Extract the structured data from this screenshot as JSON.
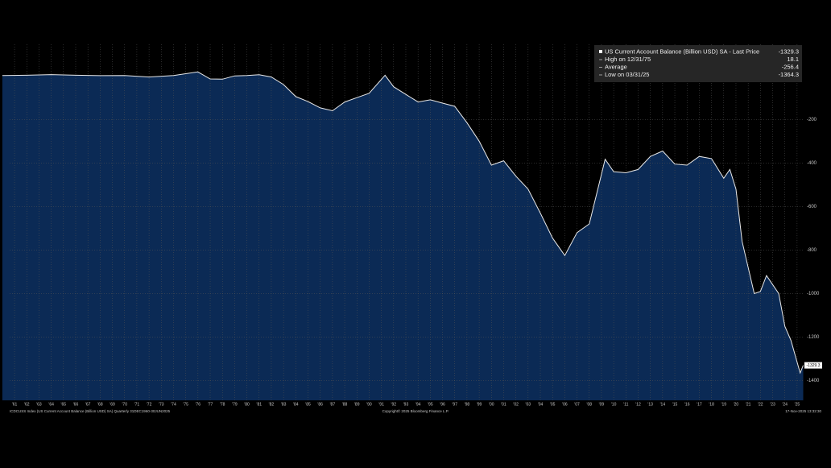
{
  "chart_data": {
    "type": "area",
    "series": [
      {
        "name": "US Current Account Balance (Billion USD) SA - Last Price",
        "color": "#0b2a55",
        "line_color": "#e8e8e8",
        "x": [
          1960,
          1962,
          1964,
          1966,
          1968,
          1970,
          1972,
          1974,
          1975.99,
          1977,
          1978,
          1979,
          1980,
          1981,
          1982,
          1983,
          1984,
          1985,
          1986,
          1987,
          1988,
          1989,
          1990,
          1991.3,
          1992,
          1993,
          1994,
          1995,
          1996,
          1997,
          1998,
          1999,
          2000,
          2001,
          2002,
          2003,
          2004,
          2005,
          2006,
          2007,
          2008,
          2009.3,
          2010,
          2011,
          2012,
          2013,
          2014,
          2015,
          2016,
          2017,
          2018,
          2019,
          2019.5,
          2020,
          2020.5,
          2021.5,
          2022,
          2022.5,
          2023.5,
          2024,
          2024.5,
          2025.25,
          2025.5
        ],
        "values": [
          2,
          3,
          6,
          3,
          1,
          2,
          -5,
          2,
          18.1,
          -14,
          -15,
          0,
          2,
          5,
          -5,
          -40,
          -95,
          -118,
          -147,
          -160,
          -120,
          -100,
          -80,
          3,
          -50,
          -85,
          -120,
          -110,
          -125,
          -140,
          -215,
          -300,
          -410,
          -390,
          -460,
          -520,
          -630,
          -745,
          -825,
          -720,
          -680,
          -383,
          -440,
          -445,
          -430,
          -370,
          -345,
          -405,
          -410,
          -370,
          -380,
          -470,
          -430,
          -520,
          -760,
          -1000,
          -990,
          -917,
          -1000,
          -1150,
          -1215,
          -1364.3,
          -1329.3
        ]
      }
    ],
    "stats": [
      {
        "label": "High on 12/31/75",
        "value": 18.1
      },
      {
        "label": "Average",
        "value": -256.4
      },
      {
        "label": "Low on 03/31/25",
        "value": -1364.3
      }
    ],
    "xlim": [
      1960.6,
      2025.6
    ],
    "ylim": [
      -1490,
      145
    ],
    "yticks": [
      -1400,
      -1200,
      -1000,
      -800,
      -600,
      -400,
      -200
    ],
    "xticks": [
      {
        "value": 1961,
        "label": "'61"
      },
      {
        "value": 1962,
        "label": "'62"
      },
      {
        "value": 1963,
        "label": "'63"
      },
      {
        "value": 1964,
        "label": "'64"
      },
      {
        "value": 1965,
        "label": "'65"
      },
      {
        "value": 1966,
        "label": "'66"
      },
      {
        "value": 1967,
        "label": "'67"
      },
      {
        "value": 1968,
        "label": "'68"
      },
      {
        "value": 1969,
        "label": "'69"
      },
      {
        "value": 1970,
        "label": "'70"
      },
      {
        "value": 1971,
        "label": "'71"
      },
      {
        "value": 1972,
        "label": "'72"
      },
      {
        "value": 1973,
        "label": "'73"
      },
      {
        "value": 1974,
        "label": "'74"
      },
      {
        "value": 1975,
        "label": "'75"
      },
      {
        "value": 1976,
        "label": "'76"
      },
      {
        "value": 1977,
        "label": "'77"
      },
      {
        "value": 1978,
        "label": "'78"
      },
      {
        "value": 1979,
        "label": "'79"
      },
      {
        "value": 1980,
        "label": "'80"
      },
      {
        "value": 1981,
        "label": "'81"
      },
      {
        "value": 1982,
        "label": "'82"
      },
      {
        "value": 1983,
        "label": "'83"
      },
      {
        "value": 1984,
        "label": "'84"
      },
      {
        "value": 1985,
        "label": "'85"
      },
      {
        "value": 1986,
        "label": "'86"
      },
      {
        "value": 1987,
        "label": "'87"
      },
      {
        "value": 1988,
        "label": "'88"
      },
      {
        "value": 1989,
        "label": "'89"
      },
      {
        "value": 1990,
        "label": "'90"
      },
      {
        "value": 1991,
        "label": "'91"
      },
      {
        "value": 1992,
        "label": "'92"
      },
      {
        "value": 1993,
        "label": "'93"
      },
      {
        "value": 1994,
        "label": "'94"
      },
      {
        "value": 1995,
        "label": "'95"
      },
      {
        "value": 1996,
        "label": "'96"
      },
      {
        "value": 1997,
        "label": "'97"
      },
      {
        "value": 1998,
        "label": "'98"
      },
      {
        "value": 1999,
        "label": "'99"
      },
      {
        "value": 2000,
        "label": "'00"
      },
      {
        "value": 2001,
        "label": "'01"
      },
      {
        "value": 2002,
        "label": "'02"
      },
      {
        "value": 2003,
        "label": "'03"
      },
      {
        "value": 2004,
        "label": "'04"
      },
      {
        "value": 2005,
        "label": "'05"
      },
      {
        "value": 2006,
        "label": "'06"
      },
      {
        "value": 2007,
        "label": "'07"
      },
      {
        "value": 2008,
        "label": "'08"
      },
      {
        "value": 2009,
        "label": "'09"
      },
      {
        "value": 2010,
        "label": "'10"
      },
      {
        "value": 2011,
        "label": "'11"
      },
      {
        "value": 2012,
        "label": "'12"
      },
      {
        "value": 2013,
        "label": "'13"
      },
      {
        "value": 2014,
        "label": "'14"
      },
      {
        "value": 2015,
        "label": "'15"
      },
      {
        "value": 2016,
        "label": "'16"
      },
      {
        "value": 2017,
        "label": "'17"
      },
      {
        "value": 2018,
        "label": "'18"
      },
      {
        "value": 2019,
        "label": "'19"
      },
      {
        "value": 2020,
        "label": "'20"
      },
      {
        "value": 2021,
        "label": "'21"
      },
      {
        "value": 2022,
        "label": "'22"
      },
      {
        "value": 2023,
        "label": "'23"
      },
      {
        "value": 2024,
        "label": "'24"
      },
      {
        "value": 2025,
        "label": "'25"
      }
    ],
    "grid": true,
    "source": "ICDCUSS Index (US Current Account Balance (Billion USD) SA) Quarterly 31DEC1960-30JUN2025",
    "copyright": "Copyright© 2025 Bloomberg Finance L.P.",
    "timestamp": "17-Nov-2025 13:32:30"
  }
}
